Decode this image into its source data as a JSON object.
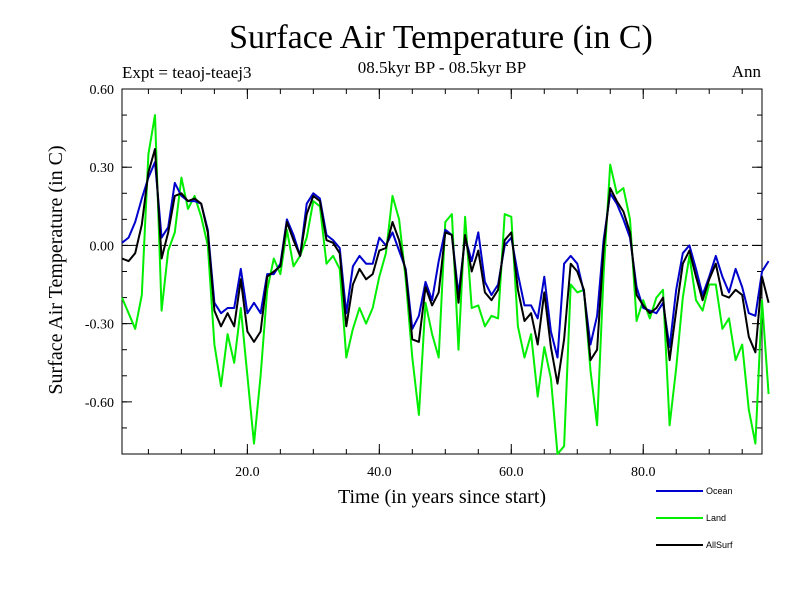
{
  "chart_data": {
    "type": "line",
    "title": "Surface Air Temperature (in C)",
    "subtitle": "08.5kyr BP - 08.5kyr BP",
    "experiment": "Expt = teaoj-teaej3",
    "period": "Ann",
    "xlabel": "Time (in years since start)",
    "ylabel": "Surface Air Temperature (in C)",
    "xlim": [
      1,
      98
    ],
    "ylim": [
      -0.8,
      0.6
    ],
    "xticks": [
      20,
      40,
      60,
      80
    ],
    "xtick_labels": [
      "20.0",
      "40.0",
      "60.0",
      "80.0"
    ],
    "yticks": [
      0.6,
      0.3,
      0.0,
      -0.3,
      -0.6
    ],
    "ytick_labels": [
      "0.60",
      "0.30",
      "0.00",
      "-0.30",
      "-0.60"
    ],
    "zero_line": true,
    "legend_position": "bottom-right",
    "series": [
      {
        "name": "Ocean",
        "color": "#0000cc",
        "values": [
          0.01,
          0.03,
          0.09,
          0.18,
          0.26,
          0.32,
          0.03,
          0.07,
          0.24,
          0.19,
          0.17,
          0.17,
          0.16,
          0.06,
          -0.22,
          -0.26,
          -0.24,
          -0.24,
          -0.09,
          -0.26,
          -0.22,
          -0.26,
          -0.11,
          -0.11,
          -0.07,
          0.1,
          0.04,
          -0.04,
          0.16,
          0.2,
          0.18,
          0.04,
          0.02,
          -0.01,
          -0.26,
          -0.08,
          -0.04,
          -0.07,
          -0.07,
          0.03,
          0.0,
          0.05,
          -0.02,
          -0.09,
          -0.32,
          -0.27,
          -0.14,
          -0.21,
          -0.06,
          0.06,
          0.04,
          -0.19,
          0.03,
          -0.06,
          0.05,
          -0.14,
          -0.19,
          -0.15,
          0.0,
          0.03,
          -0.11,
          -0.23,
          -0.23,
          -0.28,
          -0.12,
          -0.33,
          -0.43,
          -0.07,
          -0.04,
          -0.07,
          -0.18,
          -0.38,
          -0.27,
          0.02,
          0.2,
          0.16,
          0.1,
          0.03,
          -0.16,
          -0.24,
          -0.25,
          -0.26,
          -0.22,
          -0.39,
          -0.17,
          -0.03,
          0.0,
          -0.09,
          -0.19,
          -0.12,
          -0.04,
          -0.12,
          -0.18,
          -0.09,
          -0.16,
          -0.26,
          -0.27,
          -0.1,
          -0.06
        ]
      },
      {
        "name": "Land",
        "color": "#00ee00",
        "values": [
          -0.2,
          -0.26,
          -0.32,
          -0.19,
          0.35,
          0.5,
          -0.25,
          -0.02,
          0.05,
          0.26,
          0.14,
          0.19,
          0.11,
          0.0,
          -0.38,
          -0.54,
          -0.34,
          -0.45,
          -0.24,
          -0.5,
          -0.76,
          -0.5,
          -0.17,
          -0.05,
          -0.11,
          0.06,
          -0.08,
          -0.04,
          0.03,
          0.17,
          0.15,
          -0.07,
          -0.04,
          -0.09,
          -0.43,
          -0.32,
          -0.24,
          -0.3,
          -0.24,
          -0.12,
          -0.03,
          0.19,
          0.1,
          -0.13,
          -0.43,
          -0.65,
          -0.22,
          -0.34,
          -0.43,
          0.09,
          0.12,
          -0.4,
          0.11,
          -0.24,
          -0.23,
          -0.31,
          -0.27,
          -0.28,
          0.12,
          0.11,
          -0.31,
          -0.43,
          -0.34,
          -0.58,
          -0.39,
          -0.51,
          -0.8,
          -0.77,
          -0.15,
          -0.18,
          -0.17,
          -0.48,
          -0.69,
          -0.11,
          0.31,
          0.2,
          0.22,
          0.1,
          -0.29,
          -0.21,
          -0.28,
          -0.2,
          -0.17,
          -0.69,
          -0.47,
          -0.2,
          -0.04,
          -0.21,
          -0.25,
          -0.15,
          -0.15,
          -0.32,
          -0.28,
          -0.44,
          -0.38,
          -0.63,
          -0.76,
          -0.21,
          -0.57
        ]
      },
      {
        "name": "AllSurf",
        "color": "#000000",
        "values": [
          -0.05,
          -0.06,
          -0.03,
          0.08,
          0.28,
          0.37,
          -0.05,
          0.05,
          0.19,
          0.2,
          0.17,
          0.18,
          0.16,
          0.05,
          -0.25,
          -0.31,
          -0.26,
          -0.31,
          -0.13,
          -0.33,
          -0.37,
          -0.33,
          -0.12,
          -0.1,
          -0.08,
          0.09,
          0.02,
          -0.04,
          0.12,
          0.19,
          0.17,
          0.02,
          0.01,
          -0.03,
          -0.31,
          -0.15,
          -0.09,
          -0.13,
          -0.11,
          -0.02,
          -0.01,
          0.09,
          0.02,
          -0.1,
          -0.36,
          -0.37,
          -0.16,
          -0.23,
          -0.18,
          0.05,
          0.04,
          -0.22,
          0.04,
          -0.1,
          -0.02,
          -0.18,
          -0.21,
          -0.17,
          0.02,
          0.05,
          -0.17,
          -0.29,
          -0.26,
          -0.38,
          -0.18,
          -0.39,
          -0.53,
          -0.36,
          -0.07,
          -0.1,
          -0.17,
          -0.44,
          -0.4,
          -0.01,
          0.22,
          0.17,
          0.13,
          0.05,
          -0.19,
          -0.23,
          -0.26,
          -0.24,
          -0.2,
          -0.44,
          -0.25,
          -0.07,
          -0.02,
          -0.12,
          -0.21,
          -0.13,
          -0.07,
          -0.19,
          -0.2,
          -0.17,
          -0.19,
          -0.35,
          -0.41,
          -0.12,
          -0.22
        ]
      }
    ]
  }
}
